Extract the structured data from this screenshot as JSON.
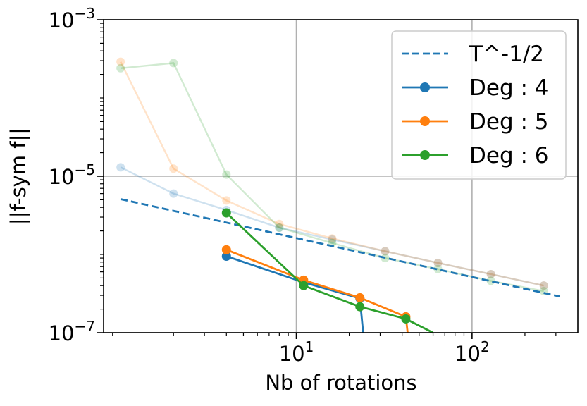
{
  "chart_data": {
    "type": "line",
    "title": "",
    "xlabel": "Nb of rotations",
    "ylabel": "||f-sym f||",
    "xscale": "log",
    "yscale": "log",
    "xlim": [
      0.8,
      400
    ],
    "ylim": [
      1e-07,
      0.001
    ],
    "grid": true,
    "legend_position": "top-right",
    "x_ticks": [
      {
        "value": 10,
        "base": "10",
        "exp": "1"
      },
      {
        "value": 100,
        "base": "10",
        "exp": "2"
      }
    ],
    "y_ticks": [
      {
        "value": 1e-07,
        "base": "10",
        "exp": "−7"
      },
      {
        "value": 1e-05,
        "base": "10",
        "exp": "−5"
      },
      {
        "value": 0.001,
        "base": "10",
        "exp": "−3"
      }
    ],
    "reference": {
      "name": "T^-1/2",
      "color": "#1f77b4",
      "style": "dashed",
      "x": [
        1,
        316
      ],
      "y": [
        5.1e-06,
        2.9e-07
      ]
    },
    "series": [
      {
        "name": "Deg : 4",
        "color": "#1f77b4",
        "faded": {
          "x": [
            1,
            2,
            4,
            8,
            16,
            32,
            64,
            128,
            256
          ],
          "y": [
            1.3e-05,
            6e-06,
            3.7e-06,
            2.2e-06,
            1.55e-06,
            1.1e-06,
            7.8e-07,
            5.6e-07,
            4e-07
          ]
        },
        "solid": {
          "x": [
            4,
            11,
            23,
            24
          ],
          "y": [
            9.5e-07,
            4.4e-07,
            2.75e-07,
            1e-07
          ]
        }
      },
      {
        "name": "Deg : 5",
        "color": "#ff7f0e",
        "faded": {
          "x": [
            1,
            2,
            4,
            8,
            16,
            32,
            64,
            128,
            256
          ],
          "y": [
            0.00029,
            1.25e-05,
            4.9e-06,
            2.45e-06,
            1.6e-06,
            1.1e-06,
            7.8e-07,
            5.6e-07,
            4e-07
          ]
        },
        "solid": {
          "x": [
            4,
            11,
            23,
            42,
            43
          ],
          "y": [
            1.15e-06,
            4.7e-07,
            2.8e-07,
            1.6e-07,
            1e-07
          ]
        }
      },
      {
        "name": "Deg : 6",
        "color": "#2ca02c",
        "faded": {
          "x": [
            1,
            2,
            4,
            8,
            16,
            32,
            64,
            128,
            256
          ],
          "y": [
            0.00024,
            0.00028,
            1.05e-05,
            2.2e-06,
            1.4e-06,
            9e-07,
            6.5e-07,
            4.6e-07,
            3.4e-07
          ]
        },
        "solid": {
          "x": [
            4,
            11,
            23,
            42,
            60
          ],
          "y": [
            3.4e-06,
            4e-07,
            2.15e-07,
            1.5e-07,
            1e-07
          ]
        }
      }
    ]
  }
}
